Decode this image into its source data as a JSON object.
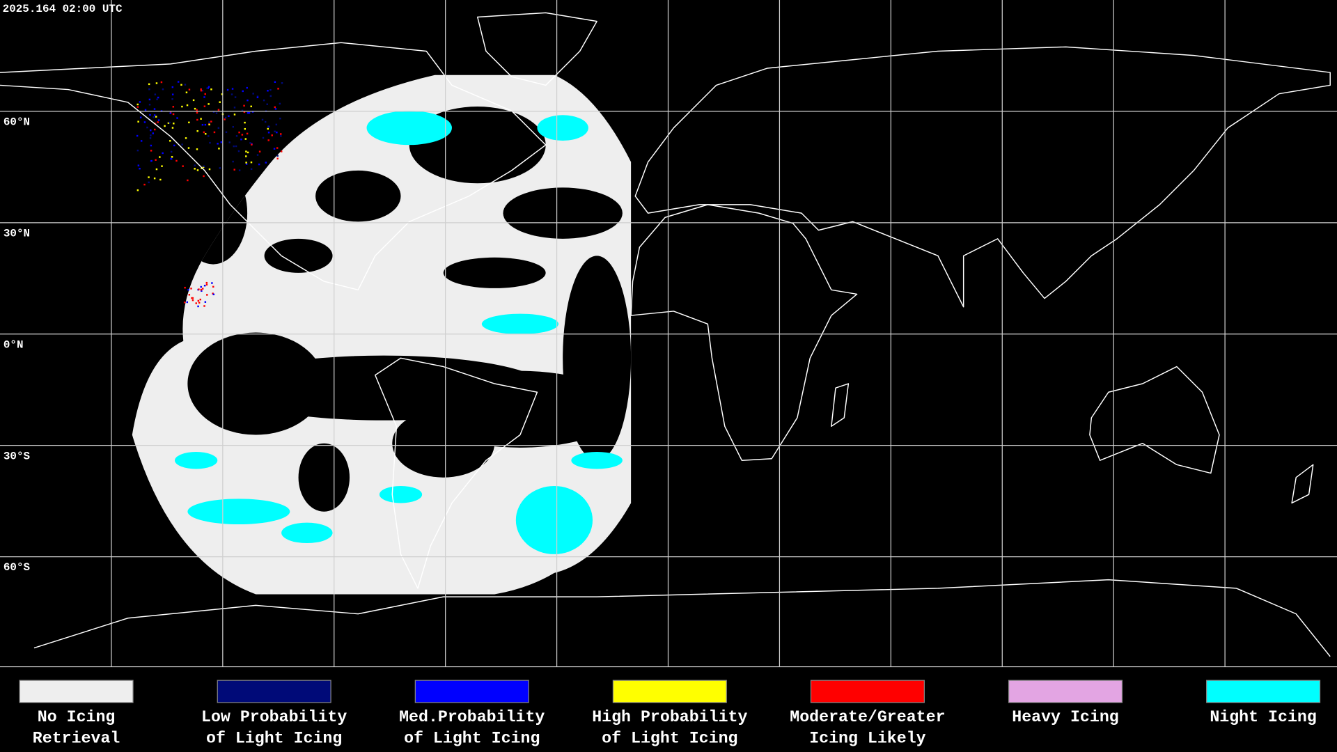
{
  "header": {
    "timestamp": "2025.164 02:00 UTC"
  },
  "latitude_labels": [
    "60°N",
    "30°N",
    "0°N",
    "30°S",
    "60°S"
  ],
  "legend": [
    {
      "label": [
        "No Icing",
        "Retrieval"
      ],
      "color": "#eeeeee"
    },
    {
      "label": [
        "Low Probability",
        "of Light Icing"
      ],
      "color": "#000a78"
    },
    {
      "label": [
        "Med.Probability",
        "of Light Icing"
      ],
      "color": "#0000ff"
    },
    {
      "label": [
        "High Probability",
        "of Light Icing"
      ],
      "color": "#ffff00"
    },
    {
      "label": [
        "Moderate/Greater",
        "Icing Likely"
      ],
      "color": "#ff0000"
    },
    {
      "label": [
        "Heavy Icing"
      ],
      "color": "#e3a5e3"
    },
    {
      "label": [
        "Night Icing"
      ],
      "color": "#00ffff"
    }
  ]
}
